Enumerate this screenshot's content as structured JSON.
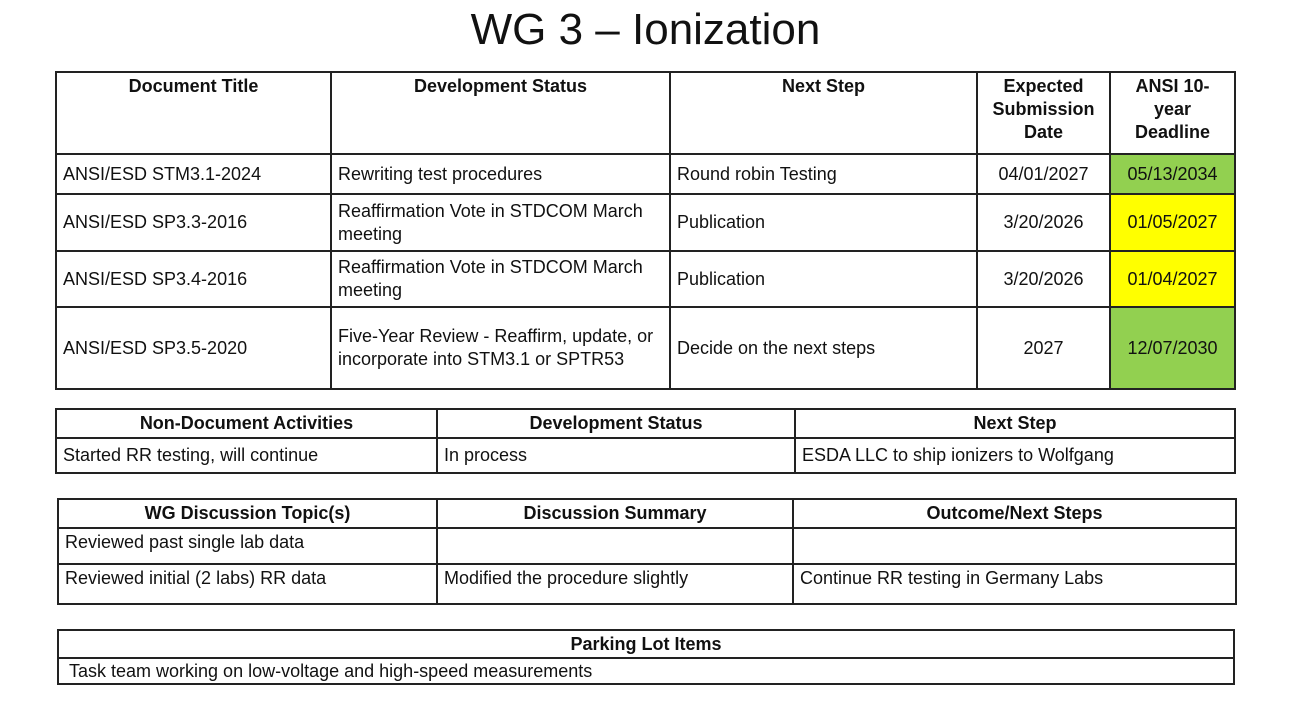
{
  "title": "WG 3 – Ionization",
  "colors": {
    "green": "#92D050",
    "yellow": "#FFFF00"
  },
  "documents": {
    "headers": [
      "Document Title",
      "Development Status",
      "Next Step",
      "Expected Submission Date",
      "ANSI 10-year Deadline"
    ],
    "rows": [
      {
        "title": "ANSI/ESD STM3.1-2024",
        "status": "Rewriting test procedures",
        "next": "Round robin Testing",
        "expected": "04/01/2027",
        "deadline": "05/13/2034",
        "deadline_color": "green"
      },
      {
        "title": "ANSI/ESD SP3.3-2016",
        "status": "Reaffirmation Vote in STDCOM March meeting",
        "next": "Publication",
        "expected": "3/20/2026",
        "deadline": "01/05/2027",
        "deadline_color": "yellow"
      },
      {
        "title": "ANSI/ESD SP3.4-2016",
        "status": "Reaffirmation Vote in STDCOM March meeting",
        "next": "Publication",
        "expected": "3/20/2026",
        "deadline": "01/04/2027",
        "deadline_color": "yellow"
      },
      {
        "title": "ANSI/ESD SP3.5-2020",
        "status": "Five-Year Review - Reaffirm, update, or incorporate into STM3.1 or SPTR53",
        "next": "Decide on the next steps",
        "expected": "2027",
        "deadline": "12/07/2030",
        "deadline_color": "green"
      }
    ]
  },
  "activities": {
    "headers": [
      "Non-Document Activities",
      "Development Status",
      "Next Step"
    ],
    "rows": [
      [
        "Started RR testing, will continue",
        "In process",
        "ESDA LLC to ship ionizers to Wolfgang"
      ]
    ]
  },
  "discussion": {
    "headers": [
      "WG Discussion Topic(s)",
      "Discussion Summary",
      "Outcome/Next Steps"
    ],
    "rows": [
      [
        "Reviewed past single lab data",
        "",
        ""
      ],
      [
        "Reviewed initial (2 labs) RR data",
        "Modified the procedure slightly",
        "Continue RR testing in Germany Labs"
      ]
    ]
  },
  "parking_lot": {
    "header": "Parking Lot Items",
    "items": [
      "Task team working on low-voltage and high-speed measurements"
    ]
  }
}
